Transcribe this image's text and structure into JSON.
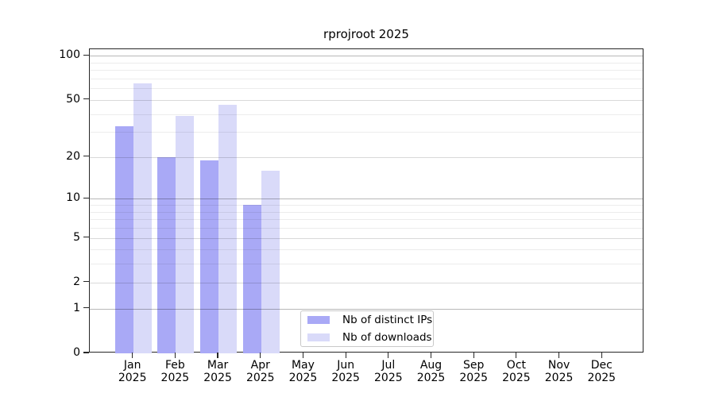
{
  "chart_data": {
    "type": "bar",
    "title": "rprojroot 2025",
    "categories": [
      "Jan",
      "Feb",
      "Mar",
      "Apr",
      "May",
      "Jun",
      "Jul",
      "Aug",
      "Sep",
      "Oct",
      "Nov",
      "Dec"
    ],
    "category_year": "2025",
    "series": [
      {
        "name": "Nb of distinct IPs",
        "color": "#a9a9f6",
        "values": [
          33,
          20,
          19,
          9,
          0,
          0,
          0,
          0,
          0,
          0,
          0,
          0
        ]
      },
      {
        "name": "Nb of downloads",
        "color": "#d9daf9",
        "values": [
          65,
          39,
          46,
          16,
          0,
          0,
          0,
          0,
          0,
          0,
          0,
          0
        ]
      }
    ],
    "yscale": "log1p",
    "ylim": [
      0,
      111
    ],
    "ytick_values": [
      0,
      1,
      2,
      5,
      10,
      20,
      50,
      100
    ],
    "ytick_labels": [
      "0",
      "1",
      "2",
      "5",
      "10",
      "20",
      "50",
      "100"
    ],
    "minor_gridline_values": [
      3,
      4,
      6,
      7,
      8,
      9,
      30,
      40,
      60,
      70,
      80,
      90
    ],
    "grid": "horizontal",
    "legend_position": "inside-bottom-center-left"
  }
}
